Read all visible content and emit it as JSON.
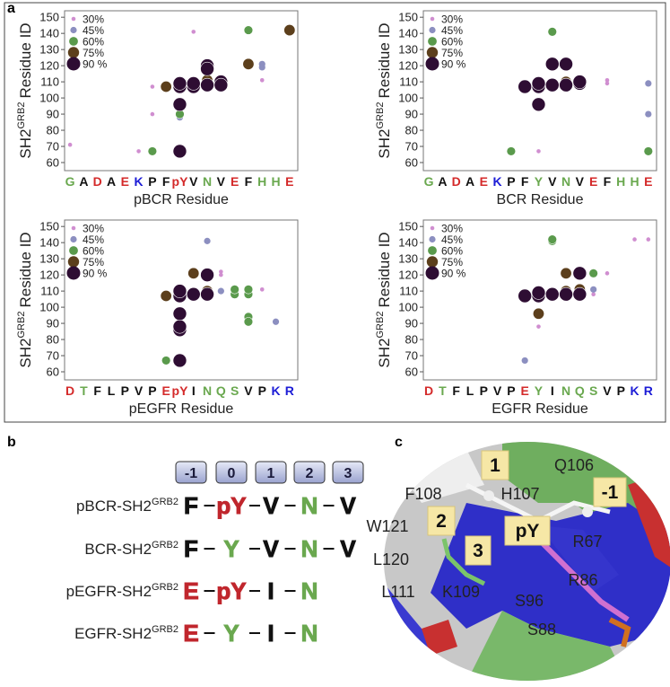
{
  "panel_a": {
    "label": "a"
  },
  "chart_data": [
    {
      "type": "scatter",
      "x_label": "pBCR Residue",
      "y_label": "SH2",
      "y_label_sup": "GRB2",
      "y_label_suffix": "Residue ID",
      "xlim": [
        0.6,
        17.6
      ],
      "ylim": [
        55,
        154
      ],
      "yticks": [
        60,
        70,
        80,
        90,
        100,
        110,
        120,
        130,
        140,
        150
      ],
      "legend": "upper left",
      "xticks": [
        {
          "value": 1,
          "label": "G"
        },
        {
          "value": 2,
          "label": "A"
        },
        {
          "value": 3,
          "label": "D"
        },
        {
          "value": 4,
          "label": "A"
        },
        {
          "value": 5,
          "label": "E"
        },
        {
          "value": 6,
          "label": "K"
        },
        {
          "value": 7,
          "label": "P"
        },
        {
          "value": 8,
          "label": "F"
        },
        {
          "value": 9,
          "label": "pY"
        },
        {
          "value": 10,
          "label": "V"
        },
        {
          "value": 11,
          "label": "N"
        },
        {
          "value": 12,
          "label": "V"
        },
        {
          "value": 13,
          "label": "E"
        },
        {
          "value": 14,
          "label": "F"
        },
        {
          "value": 15,
          "label": "H"
        },
        {
          "value": 16,
          "label": "H"
        },
        {
          "value": 17,
          "label": "E"
        }
      ],
      "xtick_colors": [
        "#6aa84f",
        "#111",
        "#d42a2a",
        "#111",
        "#d42a2a",
        "#1c1cd6",
        "#111",
        "#111",
        "#d42a2a",
        "#111",
        "#6aa84f",
        "#111",
        "#d42a2a",
        "#111",
        "#6aa84f",
        "#6aa84f",
        "#d42a2a"
      ],
      "series": [
        {
          "name": "30%",
          "color": "#d08ed0",
          "x": [
            1,
            6,
            7,
            7,
            10,
            15
          ],
          "y": [
            71,
            67,
            90,
            107,
            141,
            111
          ]
        },
        {
          "name": "45%",
          "color": "#8c8fc0",
          "x": [
            9,
            15,
            15
          ],
          "y": [
            88,
            121,
            119
          ]
        },
        {
          "name": "60%",
          "color": "#5a9a4c",
          "x": [
            7,
            9,
            11,
            14
          ],
          "y": [
            67,
            90,
            121,
            142
          ]
        },
        {
          "name": "75%",
          "color": "#5c3f1c",
          "x": [
            8,
            14,
            17,
            11
          ],
          "y": [
            107,
            121,
            142,
            111
          ]
        },
        {
          "name": "90 %",
          "color": "#2e0d33",
          "x": [
            9,
            9,
            9,
            9,
            10,
            10,
            11,
            11,
            11,
            12,
            12
          ],
          "y": [
            67,
            96,
            107,
            109,
            107,
            109,
            108,
            120,
            118,
            110,
            108
          ]
        }
      ]
    },
    {
      "type": "scatter",
      "x_label": "BCR Residue",
      "y_label": "SH2",
      "y_label_sup": "GRB2",
      "y_label_suffix": "Residue ID",
      "xlim": [
        0.6,
        17.6
      ],
      "ylim": [
        55,
        154
      ],
      "yticks": [
        60,
        70,
        80,
        90,
        100,
        110,
        120,
        130,
        140,
        150
      ],
      "legend": "upper left",
      "xticks": [
        {
          "value": 1,
          "label": "G"
        },
        {
          "value": 2,
          "label": "A"
        },
        {
          "value": 3,
          "label": "D"
        },
        {
          "value": 4,
          "label": "A"
        },
        {
          "value": 5,
          "label": "E"
        },
        {
          "value": 6,
          "label": "K"
        },
        {
          "value": 7,
          "label": "P"
        },
        {
          "value": 8,
          "label": "F"
        },
        {
          "value": 9,
          "label": "Y"
        },
        {
          "value": 10,
          "label": "V"
        },
        {
          "value": 11,
          "label": "N"
        },
        {
          "value": 12,
          "label": "V"
        },
        {
          "value": 13,
          "label": "E"
        },
        {
          "value": 14,
          "label": "F"
        },
        {
          "value": 15,
          "label": "H"
        },
        {
          "value": 16,
          "label": "H"
        },
        {
          "value": 17,
          "label": "E"
        }
      ],
      "xtick_colors": [
        "#6aa84f",
        "#111",
        "#d42a2a",
        "#111",
        "#d42a2a",
        "#1c1cd6",
        "#111",
        "#111",
        "#6aa84f",
        "#111",
        "#6aa84f",
        "#111",
        "#d42a2a",
        "#111",
        "#6aa84f",
        "#6aa84f",
        "#d42a2a"
      ],
      "series": [
        {
          "name": "30%",
          "color": "#d08ed0",
          "x": [
            9,
            14,
            14
          ],
          "y": [
            67,
            111,
            109
          ]
        },
        {
          "name": "45%",
          "color": "#8c8fc0",
          "x": [
            17,
            17
          ],
          "y": [
            109,
            90
          ]
        },
        {
          "name": "60%",
          "color": "#5a9a4c",
          "x": [
            7,
            10,
            17
          ],
          "y": [
            67,
            141,
            67
          ]
        },
        {
          "name": "75%",
          "color": "#5c3f1c",
          "x": [
            11
          ],
          "y": [
            110
          ]
        },
        {
          "name": "90 %",
          "color": "#2e0d33",
          "x": [
            8,
            9,
            9,
            9,
            10,
            10,
            11,
            11,
            12,
            12
          ],
          "y": [
            107,
            96,
            107,
            109,
            108,
            121,
            108,
            121,
            109,
            110
          ]
        }
      ]
    },
    {
      "type": "scatter",
      "x_label": "pEGFR Residue",
      "y_label": "SH2",
      "y_label_sup": "GRB2",
      "y_label_suffix": "Residue ID",
      "xlim": [
        0.6,
        17.6
      ],
      "ylim": [
        55,
        154
      ],
      "yticks": [
        60,
        70,
        80,
        90,
        100,
        110,
        120,
        130,
        140,
        150
      ],
      "legend": "upper left",
      "xticks": [
        {
          "value": 1,
          "label": "D"
        },
        {
          "value": 2,
          "label": "T"
        },
        {
          "value": 3,
          "label": "F"
        },
        {
          "value": 4,
          "label": "L"
        },
        {
          "value": 5,
          "label": "P"
        },
        {
          "value": 6,
          "label": "V"
        },
        {
          "value": 7,
          "label": "P"
        },
        {
          "value": 8,
          "label": "E"
        },
        {
          "value": 9,
          "label": "pY"
        },
        {
          "value": 10,
          "label": "I"
        },
        {
          "value": 11,
          "label": "N"
        },
        {
          "value": 12,
          "label": "Q"
        },
        {
          "value": 13,
          "label": "S"
        },
        {
          "value": 14,
          "label": "V"
        },
        {
          "value": 15,
          "label": "P"
        },
        {
          "value": 16,
          "label": "K"
        },
        {
          "value": 17,
          "label": "R"
        }
      ],
      "xtick_colors": [
        "#d42a2a",
        "#6aa84f",
        "#111",
        "#111",
        "#111",
        "#111",
        "#111",
        "#d42a2a",
        "#d42a2a",
        "#111",
        "#6aa84f",
        "#6aa84f",
        "#6aa84f",
        "#111",
        "#111",
        "#1c1cd6",
        "#1c1cd6"
      ],
      "series": [
        {
          "name": "30%",
          "color": "#d08ed0",
          "x": [
            12,
            12,
            15
          ],
          "y": [
            120,
            122,
            111
          ]
        },
        {
          "name": "45%",
          "color": "#8c8fc0",
          "x": [
            11,
            12,
            16
          ],
          "y": [
            141,
            110,
            91
          ]
        },
        {
          "name": "60%",
          "color": "#5a9a4c",
          "x": [
            8,
            13,
            13,
            14,
            14,
            14,
            14
          ],
          "y": [
            67,
            108,
            111,
            108,
            111,
            94,
            91
          ]
        },
        {
          "name": "75%",
          "color": "#5c3f1c",
          "x": [
            8,
            10,
            11
          ],
          "y": [
            107,
            121,
            110
          ]
        },
        {
          "name": "90 %",
          "color": "#2e0d33",
          "x": [
            9,
            9,
            9,
            9,
            9,
            9,
            10,
            11,
            11
          ],
          "y": [
            67,
            86,
            88,
            96,
            107,
            110,
            108,
            108,
            120
          ]
        }
      ]
    },
    {
      "type": "scatter",
      "x_label": "EGFR Residue",
      "y_label": "SH2",
      "y_label_sup": "GRB2",
      "y_label_suffix": "Residue ID",
      "xlim": [
        0.6,
        17.6
      ],
      "ylim": [
        55,
        154
      ],
      "yticks": [
        60,
        70,
        80,
        90,
        100,
        110,
        120,
        130,
        140,
        150
      ],
      "legend": "upper left",
      "xticks": [
        {
          "value": 1,
          "label": "D"
        },
        {
          "value": 2,
          "label": "T"
        },
        {
          "value": 3,
          "label": "F"
        },
        {
          "value": 4,
          "label": "L"
        },
        {
          "value": 5,
          "label": "P"
        },
        {
          "value": 6,
          "label": "V"
        },
        {
          "value": 7,
          "label": "P"
        },
        {
          "value": 8,
          "label": "E"
        },
        {
          "value": 9,
          "label": "Y"
        },
        {
          "value": 10,
          "label": "I"
        },
        {
          "value": 11,
          "label": "N"
        },
        {
          "value": 12,
          "label": "Q"
        },
        {
          "value": 13,
          "label": "S"
        },
        {
          "value": 14,
          "label": "V"
        },
        {
          "value": 15,
          "label": "P"
        },
        {
          "value": 16,
          "label": "K"
        },
        {
          "value": 17,
          "label": "R"
        }
      ],
      "xtick_colors": [
        "#d42a2a",
        "#6aa84f",
        "#111",
        "#111",
        "#111",
        "#111",
        "#111",
        "#d42a2a",
        "#6aa84f",
        "#111",
        "#6aa84f",
        "#6aa84f",
        "#6aa84f",
        "#111",
        "#111",
        "#1c1cd6",
        "#1c1cd6"
      ],
      "series": [
        {
          "name": "30%",
          "color": "#d08ed0",
          "x": [
            9,
            13,
            14,
            16,
            17
          ],
          "y": [
            88,
            108,
            121,
            142,
            142
          ]
        },
        {
          "name": "45%",
          "color": "#8c8fc0",
          "x": [
            8,
            13
          ],
          "y": [
            67,
            111
          ]
        },
        {
          "name": "60%",
          "color": "#5a9a4c",
          "x": [
            10,
            10,
            13
          ],
          "y": [
            141,
            142,
            121
          ]
        },
        {
          "name": "75%",
          "color": "#5c3f1c",
          "x": [
            9,
            11,
            11,
            12
          ],
          "y": [
            96,
            121,
            110,
            111
          ]
        },
        {
          "name": "90 %",
          "color": "#2e0d33",
          "x": [
            8,
            9,
            9,
            10,
            11,
            12,
            12
          ],
          "y": [
            107,
            107,
            109,
            108,
            108,
            108,
            121
          ]
        }
      ]
    }
  ],
  "panel_b": {
    "label": "b",
    "positions": [
      "-1",
      "0",
      "1",
      "2",
      "3"
    ],
    "rows": [
      {
        "name": "pBCR-SH2",
        "sup": "GRB2",
        "residues": [
          {
            "text": "F",
            "color": "#111"
          },
          {
            "text": "pY",
            "color": "#c0262d"
          },
          {
            "text": "V",
            "color": "#111"
          },
          {
            "text": "N",
            "color": "#6aa84f"
          },
          {
            "text": "V",
            "color": "#111"
          }
        ]
      },
      {
        "name": "BCR-SH2",
        "sup": "GRB2",
        "residues": [
          {
            "text": "F",
            "color": "#111"
          },
          {
            "text": "Y",
            "color": "#6aa84f"
          },
          {
            "text": "V",
            "color": "#111"
          },
          {
            "text": "N",
            "color": "#6aa84f"
          },
          {
            "text": "V",
            "color": "#111"
          }
        ]
      },
      {
        "name": "pEGFR-SH2",
        "sup": "GRB2",
        "residues": [
          {
            "text": "E",
            "color": "#c0262d"
          },
          {
            "text": "pY",
            "color": "#c0262d"
          },
          {
            "text": "I",
            "color": "#111"
          },
          {
            "text": "N",
            "color": "#6aa84f"
          }
        ]
      },
      {
        "name": "EGFR-SH2",
        "sup": "GRB2",
        "residues": [
          {
            "text": "E",
            "color": "#c0262d"
          },
          {
            "text": "Y",
            "color": "#6aa84f"
          },
          {
            "text": "I",
            "color": "#111"
          },
          {
            "text": "N",
            "color": "#6aa84f"
          }
        ]
      }
    ]
  },
  "panel_c": {
    "label": "c",
    "boxes": [
      "1",
      "-1",
      "2",
      "pY",
      "3"
    ],
    "residues": [
      "Q106",
      "F108",
      "H107",
      "W121",
      "L120",
      "L111",
      "K109",
      "R67",
      "R86",
      "S96",
      "S88"
    ]
  }
}
